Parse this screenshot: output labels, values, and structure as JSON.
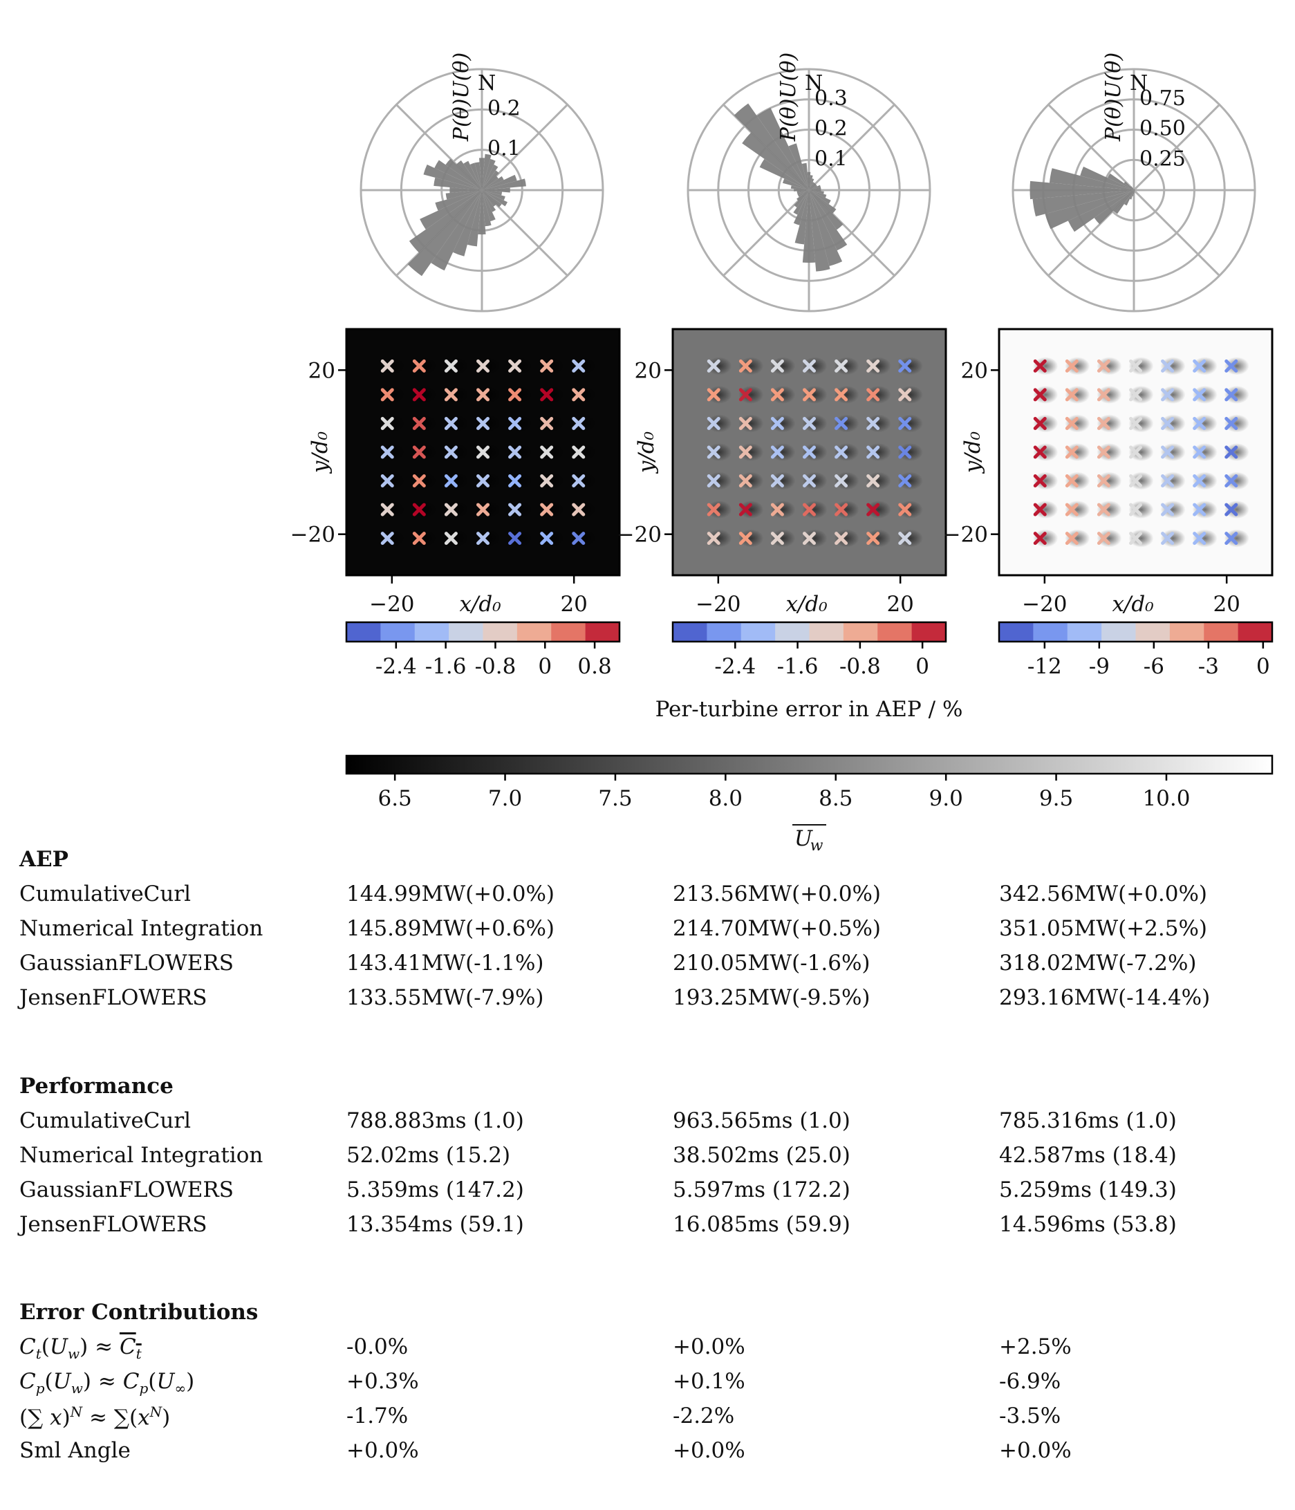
{
  "chart_data": [
    {
      "type": "polar_bar",
      "panel": 1,
      "radial_label": "P(θ)U(θ)",
      "direction_label": "N",
      "radial_ticks": [
        "0.1",
        "0.2"
      ],
      "rmax": 0.3,
      "sectors_deg": [
        0,
        10,
        20,
        30,
        40,
        50,
        60,
        70,
        80,
        90,
        100,
        110,
        120,
        130,
        140,
        150,
        160,
        170,
        180,
        190,
        200,
        210,
        220,
        230,
        240,
        250,
        260,
        270,
        280,
        290,
        300,
        310,
        320,
        330,
        340,
        350
      ],
      "values": [
        0.08,
        0.09,
        0.08,
        0.07,
        0.06,
        0.05,
        0.06,
        0.09,
        0.11,
        0.07,
        0.05,
        0.06,
        0.07,
        0.06,
        0.05,
        0.06,
        0.08,
        0.09,
        0.11,
        0.14,
        0.17,
        0.22,
        0.26,
        0.22,
        0.17,
        0.12,
        0.09,
        0.08,
        0.12,
        0.15,
        0.13,
        0.11,
        0.09,
        0.08,
        0.07,
        0.07
      ]
    },
    {
      "type": "polar_bar",
      "panel": 2,
      "radial_label": "P(θ)U(θ)",
      "direction_label": "N",
      "radial_ticks": [
        "0.1",
        "0.2",
        "0.3"
      ],
      "rmax": 0.4,
      "sectors_deg": [
        0,
        10,
        20,
        30,
        40,
        50,
        60,
        70,
        80,
        90,
        100,
        110,
        120,
        130,
        140,
        150,
        160,
        170,
        180,
        190,
        200,
        210,
        220,
        230,
        240,
        250,
        260,
        270,
        280,
        290,
        300,
        310,
        320,
        330,
        340,
        350
      ],
      "values": [
        0.06,
        0.05,
        0.04,
        0.03,
        0.03,
        0.03,
        0.03,
        0.04,
        0.04,
        0.04,
        0.05,
        0.06,
        0.08,
        0.11,
        0.16,
        0.22,
        0.26,
        0.27,
        0.24,
        0.18,
        0.12,
        0.09,
        0.07,
        0.05,
        0.04,
        0.04,
        0.04,
        0.05,
        0.06,
        0.09,
        0.18,
        0.27,
        0.35,
        0.3,
        0.16,
        0.09
      ]
    },
    {
      "type": "polar_bar",
      "panel": 3,
      "radial_label": "P(θ)U(θ)",
      "direction_label": "N",
      "radial_ticks": [
        "0.25",
        "0.50",
        "0.75"
      ],
      "rmax": 1.0,
      "sectors_deg": [
        0,
        10,
        20,
        30,
        40,
        50,
        60,
        70,
        80,
        90,
        100,
        110,
        120,
        130,
        140,
        150,
        160,
        170,
        180,
        190,
        200,
        210,
        220,
        230,
        240,
        250,
        260,
        270,
        280,
        290,
        300,
        310,
        320,
        330,
        340,
        350
      ],
      "values": [
        0.01,
        0.01,
        0.01,
        0.01,
        0.01,
        0.01,
        0.01,
        0.01,
        0.01,
        0.01,
        0.01,
        0.01,
        0.01,
        0.01,
        0.01,
        0.01,
        0.02,
        0.02,
        0.03,
        0.05,
        0.08,
        0.14,
        0.24,
        0.4,
        0.6,
        0.76,
        0.84,
        0.86,
        0.7,
        0.46,
        0.24,
        0.1,
        0.04,
        0.02,
        0.01,
        0.01
      ]
    },
    {
      "type": "heatmap_scatter",
      "panel": 1,
      "xlabel": "x/d0",
      "ylabel": "y/d0",
      "xticks": [
        -20,
        20
      ],
      "yticks": [
        20,
        -20
      ],
      "turbine_positions": [
        -21,
        -14,
        -7,
        0,
        7,
        14,
        21
      ],
      "field_base": 6.4,
      "colorbar_ticks": [
        "-2.4",
        "-1.6",
        "-0.8",
        "0",
        "0.8"
      ],
      "colorbar_range": [
        -3.2,
        1.2
      ],
      "errors": [
        [
          -1.6,
          0.2,
          -1.0,
          -1.6,
          -2.8,
          -2.0,
          -2.6
        ],
        [
          -0.8,
          1.2,
          -0.8,
          -0.2,
          -1.6,
          -0.2,
          -0.6
        ],
        [
          -1.6,
          0.2,
          -2.0,
          -1.6,
          -2.0,
          -0.8,
          -1.6
        ],
        [
          -1.6,
          0.6,
          -1.6,
          -1.0,
          -1.6,
          -1.0,
          -1.0
        ],
        [
          -1.0,
          0.6,
          -1.6,
          -1.6,
          -1.8,
          -0.4,
          -1.6
        ],
        [
          0.2,
          1.2,
          -0.2,
          -0.2,
          0.2,
          1.2,
          -0.2
        ],
        [
          -0.8,
          0.2,
          -1.0,
          -0.8,
          -0.8,
          -0.2,
          -1.6
        ]
      ]
    },
    {
      "type": "heatmap_scatter",
      "panel": 2,
      "xlabel": "x/d0",
      "ylabel": "y/d0",
      "xticks": [
        -20,
        20
      ],
      "yticks": [
        20,
        -20
      ],
      "turbine_positions": [
        -21,
        -14,
        -7,
        0,
        7,
        14,
        21
      ],
      "field_base": 8.2,
      "colorbar_ticks": [
        "-2.4",
        "-1.6",
        "-0.8",
        "0"
      ],
      "colorbar_range": [
        -3.2,
        0.3
      ],
      "errors": [
        [
          -1.2,
          -0.6,
          -1.3,
          -1.3,
          -1.2,
          -0.6,
          -1.6
        ],
        [
          -0.4,
          0.2,
          -0.8,
          -0.3,
          -0.3,
          0.2,
          -0.5
        ],
        [
          -1.8,
          -0.9,
          -1.8,
          -1.8,
          -1.6,
          -1.3,
          -2.6
        ],
        [
          -1.8,
          -1.0,
          -2.0,
          -2.0,
          -1.9,
          -1.9,
          -2.7
        ],
        [
          -1.8,
          -1.0,
          -2.0,
          -1.8,
          -2.6,
          -1.8,
          -2.6
        ],
        [
          -0.6,
          0.1,
          -0.6,
          -0.6,
          -0.6,
          -0.5,
          -1.2
        ],
        [
          -1.6,
          -0.6,
          -1.5,
          -1.6,
          -1.5,
          -1.3,
          -2.6
        ]
      ]
    },
    {
      "type": "heatmap_scatter",
      "panel": 3,
      "xlabel": "x/d0",
      "ylabel": "y/d0",
      "xticks": [
        -20,
        20
      ],
      "yticks": [
        20,
        -20
      ],
      "turbine_positions": [
        -21,
        -14,
        -7,
        0,
        7,
        14,
        21
      ],
      "field_base": 10.4,
      "colorbar_ticks": [
        "-12",
        "-9",
        "-6",
        "-3",
        "0"
      ],
      "colorbar_range": [
        -14.5,
        0.5
      ],
      "errors": [
        [
          0.0,
          -4.0,
          -4.5,
          -7.0,
          -9.0,
          -10.0,
          -12.0
        ],
        [
          0.0,
          -4.0,
          -4.5,
          -7.0,
          -9.0,
          -10.0,
          -13.0
        ],
        [
          0.0,
          -4.0,
          -4.5,
          -7.0,
          -9.0,
          -10.0,
          -12.0
        ],
        [
          0.0,
          -4.0,
          -4.5,
          -7.0,
          -9.0,
          -10.0,
          -13.0
        ],
        [
          0.0,
          -4.0,
          -4.5,
          -7.0,
          -9.0,
          -10.0,
          -12.0
        ],
        [
          0.0,
          -4.0,
          -4.5,
          -7.0,
          -9.0,
          -10.0,
          -12.0
        ],
        [
          0.0,
          -4.0,
          -4.5,
          -7.0,
          -9.0,
          -10.0,
          -12.0
        ]
      ]
    }
  ],
  "error_colorbar_label": "Per-turbine error in AEP / %",
  "speed_colorbar": {
    "ticks": [
      "6.5",
      "7.0",
      "7.5",
      "8.0",
      "8.5",
      "9.0",
      "9.5",
      "10.0"
    ],
    "range": [
      6.28,
      10.48
    ],
    "label": "Uw (overlined)"
  },
  "sections": [
    {
      "title": "AEP",
      "rows": [
        {
          "label": "CumulativeCurl",
          "values": [
            "144.99MW(+0.0%)",
            "213.56MW(+0.0%)",
            "342.56MW(+0.0%)"
          ]
        },
        {
          "label": "Numerical Integration",
          "values": [
            "145.89MW(+0.6%)",
            "214.70MW(+0.5%)",
            "351.05MW(+2.5%)"
          ]
        },
        {
          "label": "GaussianFLOWERS",
          "values": [
            "143.41MW(-1.1%)",
            "210.05MW(-1.6%)",
            "318.02MW(-7.2%)"
          ]
        },
        {
          "label": "JensenFLOWERS",
          "values": [
            "133.55MW(-7.9%)",
            "193.25MW(-9.5%)",
            "293.16MW(-14.4%)"
          ]
        }
      ]
    },
    {
      "title": "Performance",
      "rows": [
        {
          "label": "CumulativeCurl",
          "values": [
            "788.883ms (1.0)",
            "963.565ms (1.0)",
            "785.316ms (1.0)"
          ]
        },
        {
          "label": "Numerical Integration",
          "values": [
            "52.02ms (15.2)",
            "38.502ms (25.0)",
            "42.587ms (18.4)"
          ]
        },
        {
          "label": "GaussianFLOWERS",
          "values": [
            "5.359ms (147.2)",
            "5.597ms (172.2)",
            "5.259ms (149.3)"
          ]
        },
        {
          "label": "JensenFLOWERS",
          "values": [
            "13.354ms (59.1)",
            "16.085ms (59.9)",
            "14.596ms (53.8)"
          ]
        }
      ]
    },
    {
      "title": "Error Contributions",
      "rows": [
        {
          "label": "Ct(Uw) ≈ Ct (overlined)",
          "values": [
            "-0.0%",
            "+0.0%",
            "+2.5%"
          ]
        },
        {
          "label": "Cp(Uw) ≈ Cp(U∞)",
          "values": [
            "+0.3%",
            "+0.1%",
            "-6.9%"
          ]
        },
        {
          "label": "(Σ x)^N ≈ Σ(x^N)",
          "values": [
            "-1.7%",
            "-2.2%",
            "-3.5%"
          ]
        },
        {
          "label": "Sml Angle",
          "values": [
            "+0.0%",
            "+0.0%",
            "+0.0%"
          ]
        }
      ]
    }
  ]
}
